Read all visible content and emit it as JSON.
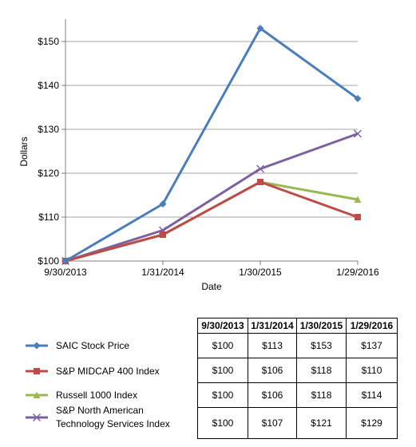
{
  "chart_data": {
    "type": "line",
    "title": "",
    "xlabel": "Date",
    "ylabel": "Dollars",
    "categories": [
      "9/30/2013",
      "1/31/2014",
      "1/30/2015",
      "1/29/2016"
    ],
    "ylim": [
      100,
      155
    ],
    "y_ticks": [
      100,
      110,
      120,
      130,
      140,
      150
    ],
    "y_tick_labels": [
      "$100",
      "$110",
      "$120",
      "$130",
      "$140",
      "$150"
    ],
    "grid": true,
    "legend_position": "bottom-left",
    "series": [
      {
        "name": "SAIC Stock Price",
        "values": [
          100,
          113,
          153,
          137
        ],
        "color": "#4a7ebb",
        "marker": "diamond"
      },
      {
        "name": "S&P MIDCAP 400 Index",
        "values": [
          100,
          106,
          118,
          110
        ],
        "color": "#be4b48",
        "marker": "square"
      },
      {
        "name": "Russell 1000 Index",
        "values": [
          100,
          106,
          118,
          114
        ],
        "color": "#98b954",
        "marker": "triangle"
      },
      {
        "name": "S&P North American Technology Services Index",
        "values": [
          100,
          107,
          121,
          129
        ],
        "color": "#7d60a0",
        "marker": "x"
      }
    ]
  },
  "legend": {
    "items": [
      {
        "lines": [
          "SAIC Stock Price"
        ]
      },
      {
        "lines": [
          "S&P MIDCAP 400 Index"
        ]
      },
      {
        "lines": [
          "Russell 1000 Index"
        ]
      },
      {
        "lines": [
          "S&P North American",
          "Technology Services Index"
        ]
      }
    ]
  },
  "table": {
    "headers": [
      "9/30/2013",
      "1/31/2014",
      "1/30/2015",
      "1/29/2016"
    ],
    "rows": [
      [
        "$100",
        "$113",
        "$153",
        "$137"
      ],
      [
        "$100",
        "$106",
        "$118",
        "$110"
      ],
      [
        "$100",
        "$106",
        "$118",
        "$114"
      ],
      [
        "$100",
        "$107",
        "$121",
        "$129"
      ]
    ]
  }
}
